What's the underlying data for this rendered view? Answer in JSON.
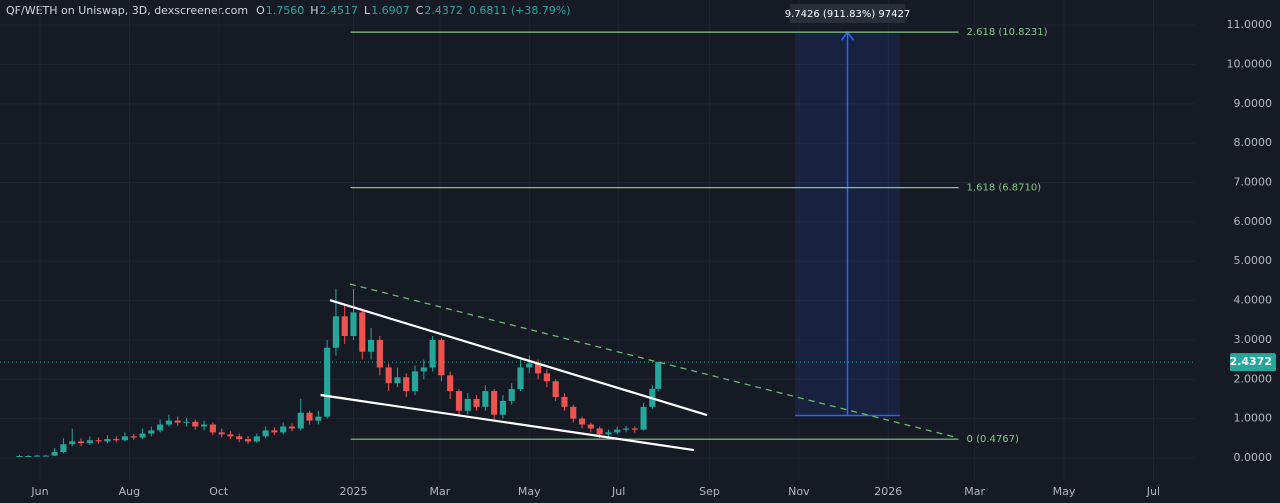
{
  "chart_data": {
    "type": "candlestick",
    "title": "QF/WETH on Uniswap, 3D, dexscreener.com",
    "ohlc": [
      {
        "key": "O",
        "value": "1.7560"
      },
      {
        "key": "H",
        "value": "2.4517"
      },
      {
        "key": "L",
        "value": "1.6907"
      },
      {
        "key": "C",
        "value": "2.4372"
      }
    ],
    "change": "0.6811 (+38.79%)",
    "x": [
      -14,
      -8,
      -2,
      4,
      10,
      16,
      22,
      28,
      34,
      40,
      46,
      52,
      58,
      64,
      70,
      76,
      82,
      88,
      94,
      100,
      106,
      112,
      118,
      124,
      130,
      136,
      142,
      148,
      154,
      160,
      166,
      172,
      178,
      184,
      190,
      196,
      202,
      208,
      214,
      220,
      226,
      232,
      238,
      244,
      250,
      256,
      262,
      268,
      274,
      280,
      286,
      292,
      298,
      304,
      310,
      316,
      322,
      328,
      334,
      340,
      346,
      352,
      358,
      364,
      370,
      376,
      382,
      388,
      394,
      400,
      406,
      412,
      418,
      422
    ],
    "open": [
      0.05,
      0.05,
      0.05,
      0.06,
      0.06,
      0.15,
      0.35,
      0.42,
      0.38,
      0.45,
      0.42,
      0.48,
      0.45,
      0.55,
      0.52,
      0.62,
      0.7,
      0.85,
      0.95,
      0.9,
      0.92,
      0.8,
      0.85,
      0.65,
      0.6,
      0.55,
      0.48,
      0.42,
      0.55,
      0.7,
      0.65,
      0.8,
      0.75,
      1.15,
      0.95,
      1.05,
      2.8,
      3.6,
      3.1,
      3.7,
      2.7,
      3.0,
      2.3,
      1.9,
      2.05,
      1.7,
      2.2,
      2.3,
      3.0,
      2.1,
      1.7,
      1.2,
      1.5,
      1.3,
      1.7,
      1.1,
      1.45,
      1.75,
      2.3,
      2.4,
      2.15,
      1.95,
      1.55,
      1.3,
      1.0,
      0.85,
      0.75,
      0.6,
      0.65,
      0.72,
      0.75,
      0.72,
      1.3,
      1.756
    ],
    "high": [
      0.07,
      0.07,
      0.08,
      0.08,
      0.25,
      0.5,
      0.75,
      0.5,
      0.55,
      0.52,
      0.58,
      0.55,
      0.65,
      0.62,
      0.75,
      0.8,
      0.98,
      1.1,
      1.05,
      1.02,
      0.98,
      0.95,
      0.9,
      0.75,
      0.68,
      0.62,
      0.55,
      0.62,
      0.8,
      0.78,
      0.9,
      0.88,
      1.5,
      1.2,
      1.2,
      3.0,
      4.3,
      3.9,
      4.3,
      3.8,
      3.3,
      3.1,
      2.4,
      2.3,
      2.15,
      2.35,
      2.5,
      3.1,
      3.05,
      2.2,
      1.75,
      1.65,
      1.6,
      1.85,
      1.75,
      1.6,
      1.9,
      2.5,
      2.6,
      2.5,
      2.25,
      2.0,
      1.65,
      1.35,
      1.05,
      0.9,
      0.8,
      0.72,
      0.8,
      0.82,
      0.8,
      1.4,
      1.85,
      2.4517
    ],
    "low": [
      0.03,
      0.03,
      0.04,
      0.04,
      0.05,
      0.12,
      0.3,
      0.3,
      0.33,
      0.36,
      0.38,
      0.4,
      0.42,
      0.46,
      0.48,
      0.55,
      0.65,
      0.8,
      0.82,
      0.8,
      0.72,
      0.7,
      0.58,
      0.52,
      0.48,
      0.4,
      0.36,
      0.38,
      0.5,
      0.58,
      0.6,
      0.68,
      0.7,
      0.85,
      0.85,
      1.0,
      2.6,
      2.9,
      3.0,
      2.5,
      2.5,
      2.1,
      1.7,
      1.8,
      1.55,
      1.6,
      2.0,
      2.2,
      1.95,
      1.5,
      1.05,
      1.1,
      1.2,
      1.2,
      0.95,
      1.0,
      1.35,
      1.7,
      2.15,
      2.0,
      1.8,
      1.45,
      1.2,
      0.9,
      0.75,
      0.65,
      0.5,
      0.52,
      0.6,
      0.65,
      0.64,
      0.7,
      1.25,
      1.6907
    ],
    "close": [
      0.05,
      0.05,
      0.06,
      0.06,
      0.15,
      0.35,
      0.42,
      0.38,
      0.45,
      0.42,
      0.48,
      0.45,
      0.55,
      0.52,
      0.62,
      0.7,
      0.85,
      0.95,
      0.9,
      0.92,
      0.8,
      0.85,
      0.65,
      0.6,
      0.55,
      0.48,
      0.42,
      0.55,
      0.7,
      0.65,
      0.8,
      0.75,
      1.15,
      0.95,
      1.05,
      2.8,
      3.6,
      3.1,
      3.7,
      2.7,
      3.0,
      2.3,
      1.9,
      2.05,
      1.7,
      2.2,
      2.3,
      3.0,
      2.1,
      1.7,
      1.2,
      1.5,
      1.3,
      1.7,
      1.1,
      1.45,
      1.75,
      2.3,
      2.4,
      2.15,
      1.95,
      1.55,
      1.3,
      1.0,
      0.85,
      0.75,
      0.6,
      0.65,
      0.72,
      0.75,
      0.72,
      1.3,
      1.756,
      2.4372
    ],
    "up_color": "#26a69a",
    "down_color": "#ef5350",
    "xlim": [
      -27.3,
      788.4
    ],
    "ylim": [
      -0.56,
      11.64
    ],
    "xticks": [
      {
        "value": 0,
        "label": "Jun"
      },
      {
        "value": 61,
        "label": "Aug"
      },
      {
        "value": 122,
        "label": "Oct"
      },
      {
        "value": 214,
        "label": "2025"
      },
      {
        "value": 273,
        "label": "Mar"
      },
      {
        "value": 334,
        "label": "May"
      },
      {
        "value": 395,
        "label": "Jul"
      },
      {
        "value": 457,
        "label": "Sep"
      },
      {
        "value": 518,
        "label": "Nov"
      },
      {
        "value": 579,
        "label": "2026"
      },
      {
        "value": 638,
        "label": "Mar"
      },
      {
        "value": 699,
        "label": "May"
      },
      {
        "value": 760,
        "label": "Jul"
      }
    ],
    "yticks": [
      {
        "value": 0,
        "label": "0.0000"
      },
      {
        "value": 1,
        "label": "1.0000"
      },
      {
        "value": 2,
        "label": "2.0000"
      },
      {
        "value": 3,
        "label": "3.0000"
      },
      {
        "value": 4,
        "label": "4.0000"
      },
      {
        "value": 5,
        "label": "5.0000"
      },
      {
        "value": 6,
        "label": "6.0000"
      },
      {
        "value": 7,
        "label": "7.0000"
      },
      {
        "value": 8,
        "label": "8.0000"
      },
      {
        "value": 9,
        "label": "9.0000"
      },
      {
        "value": 10,
        "label": "10.0000"
      },
      {
        "value": 11,
        "label": "11.0000"
      }
    ],
    "grid": true,
    "last_price": {
      "value": 2.4372,
      "label": "2.4372",
      "color": "#26a69a"
    },
    "fib_range": [
      212,
      627
    ],
    "fib_color": "#81c784",
    "fib_levels": [
      {
        "value": 10.8231,
        "label": "2.618 (10.8231)"
      },
      {
        "value": 6.871,
        "label": "1.618 (6.8710)"
      },
      {
        "value": 0.4767,
        "label": "0 (0.4767)"
      }
    ],
    "trend_lines": [
      {
        "x": [
          198,
          455.3
        ],
        "y": [
          4.01,
          1.09
        ],
        "color": "#ffffff",
        "dashed": false
      },
      {
        "x": [
          191.5,
          446.4
        ],
        "y": [
          1.6,
          0.2
        ],
        "color": "#ffffff",
        "dashed": false
      },
      {
        "x": [
          211.6,
          624.6
        ],
        "y": [
          4.42,
          0.53
        ],
        "color": "#66bb6a",
        "dashed": true
      }
    ],
    "measure": {
      "x": [
        515.4,
        587
      ],
      "y": [
        1.08,
        10.82
      ],
      "label": "9.7426 (911.83%) 97427",
      "color": "#2962ff"
    }
  }
}
